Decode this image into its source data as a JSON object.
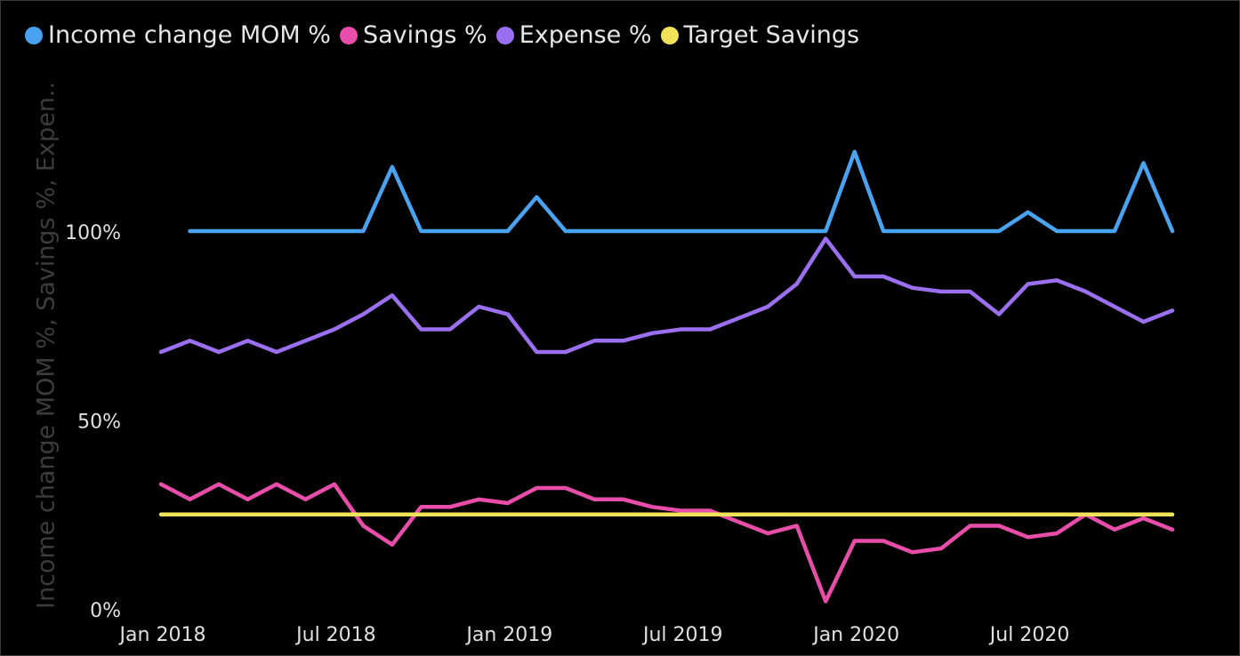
{
  "chart_data": {
    "type": "line",
    "title": "",
    "xlabel": "",
    "ylabel": "Income change MOM %, Savings %, Expen...",
    "ylim": [
      0,
      1.4
    ],
    "yticks": [
      {
        "value": 0,
        "label": "0%"
      },
      {
        "value": 0.5,
        "label": "50%"
      },
      {
        "value": 1.0,
        "label": "100%"
      }
    ],
    "xticks": [
      {
        "index": 0,
        "label": "Jan 2018"
      },
      {
        "index": 6,
        "label": "Jul 2018"
      },
      {
        "index": 12,
        "label": "Jan 2019"
      },
      {
        "index": 18,
        "label": "Jul 2019"
      },
      {
        "index": 24,
        "label": "Jan 2020"
      },
      {
        "index": 30,
        "label": "Jul 2020"
      }
    ],
    "x": [
      "Jan 2018",
      "Feb 2018",
      "Mar 2018",
      "Apr 2018",
      "May 2018",
      "Jun 2018",
      "Jul 2018",
      "Aug 2018",
      "Sep 2018",
      "Oct 2018",
      "Nov 2018",
      "Dec 2018",
      "Jan 2019",
      "Feb 2019",
      "Mar 2019",
      "Apr 2019",
      "May 2019",
      "Jun 2019",
      "Jul 2019",
      "Aug 2019",
      "Sep 2019",
      "Oct 2019",
      "Nov 2019",
      "Dec 2019",
      "Jan 2020",
      "Feb 2020",
      "Mar 2020",
      "Apr 2020",
      "May 2020",
      "Jun 2020",
      "Jul 2020",
      "Aug 2020",
      "Sep 2020",
      "Oct 2020",
      "Nov 2020",
      "Dec 2020"
    ],
    "grid": false,
    "legend_position": "top-left",
    "series": [
      {
        "name": "Income change MOM %",
        "color": "#4aa3f0",
        "start_index": 1,
        "values": [
          null,
          1.0,
          1.0,
          1.0,
          1.0,
          1.0,
          1.0,
          1.0,
          1.17,
          1.0,
          1.0,
          1.0,
          1.0,
          1.09,
          1.0,
          1.0,
          1.0,
          1.0,
          1.0,
          1.0,
          1.0,
          1.0,
          1.0,
          1.0,
          1.21,
          1.0,
          1.0,
          1.0,
          1.0,
          1.0,
          1.05,
          1.0,
          1.0,
          1.0,
          1.18,
          1.0
        ]
      },
      {
        "name": "Savings %",
        "color": "#e84ea9",
        "values": [
          0.33,
          0.29,
          0.33,
          0.29,
          0.33,
          0.29,
          0.33,
          0.22,
          0.17,
          0.27,
          0.27,
          0.29,
          0.28,
          0.32,
          0.32,
          0.29,
          0.29,
          0.27,
          0.26,
          0.26,
          0.23,
          0.2,
          0.22,
          0.02,
          0.18,
          0.18,
          0.15,
          0.16,
          0.22,
          0.22,
          0.19,
          0.2,
          0.25,
          0.21,
          0.24,
          0.21
        ]
      },
      {
        "name": "Expense %",
        "color": "#9a6ff0",
        "values": [
          0.68,
          0.71,
          0.68,
          0.71,
          0.68,
          0.71,
          0.74,
          0.78,
          0.83,
          0.74,
          0.74,
          0.8,
          0.78,
          0.68,
          0.68,
          0.71,
          0.71,
          0.73,
          0.74,
          0.74,
          0.77,
          0.8,
          0.86,
          0.98,
          0.88,
          0.88,
          0.85,
          0.84,
          0.84,
          0.78,
          0.86,
          0.87,
          0.84,
          0.8,
          0.76,
          0.79
        ]
      },
      {
        "name": "Target Savings",
        "color": "#f0e35a",
        "values": [
          0.25,
          0.25,
          0.25,
          0.25,
          0.25,
          0.25,
          0.25,
          0.25,
          0.25,
          0.25,
          0.25,
          0.25,
          0.25,
          0.25,
          0.25,
          0.25,
          0.25,
          0.25,
          0.25,
          0.25,
          0.25,
          0.25,
          0.25,
          0.25,
          0.25,
          0.25,
          0.25,
          0.25,
          0.25,
          0.25,
          0.25,
          0.25,
          0.25,
          0.25,
          0.25,
          0.25
        ]
      }
    ]
  },
  "colors": {
    "background": "#000000",
    "axis_text": "#e0e0e0",
    "axis_title": "#3c3c3c"
  }
}
